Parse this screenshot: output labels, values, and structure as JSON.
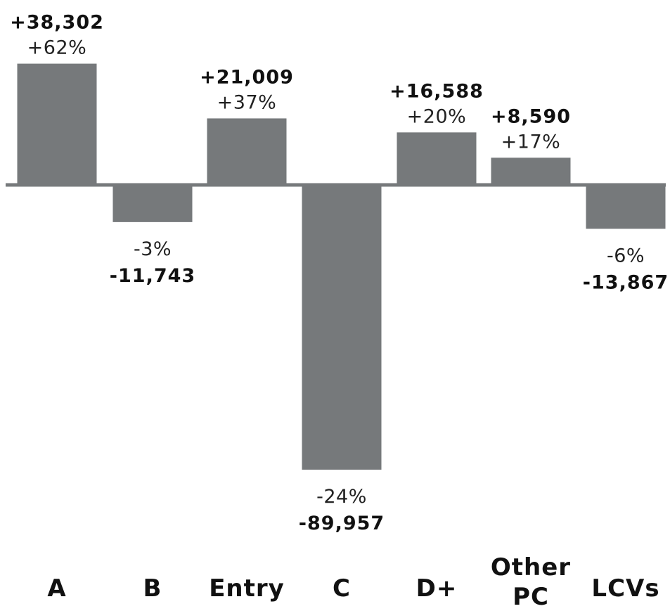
{
  "chart_data": {
    "type": "bar",
    "categories": [
      "A",
      "B",
      "Entry",
      "C",
      "D+",
      "Other PC",
      "LCVs"
    ],
    "category_lines": [
      [
        "A"
      ],
      [
        "B"
      ],
      [
        "Entry"
      ],
      [
        "C"
      ],
      [
        "D+"
      ],
      [
        "Other",
        "PC"
      ],
      [
        "LCVs"
      ]
    ],
    "values": [
      38302,
      -11743,
      21009,
      -89957,
      16588,
      8590,
      -13867
    ],
    "value_labels": [
      "+38,302",
      "-11,743",
      "+21,009",
      "-89,957",
      "+16,588",
      "+8,590",
      "-13,867"
    ],
    "percent_labels": [
      "+62%",
      "-3%",
      "+37%",
      "-24%",
      "+20%",
      "+17%",
      "-6%"
    ],
    "title": "",
    "xlabel": "",
    "ylabel": "",
    "ylim": [
      -95000,
      50000
    ],
    "grid": false,
    "legend": "none",
    "bar_color": "#76797b",
    "baseline_color": "#76797b"
  }
}
